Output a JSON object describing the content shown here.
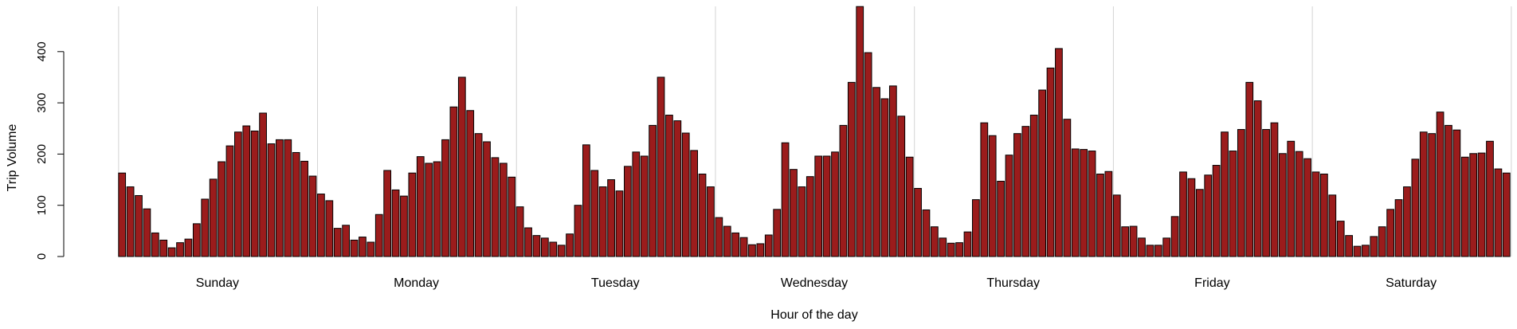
{
  "chart_data": {
    "type": "bar",
    "title": "",
    "xlabel": "Hour of the day",
    "ylabel": "Trip Volume",
    "ylim": [
      0,
      490
    ],
    "yticks": [
      0,
      100,
      200,
      300,
      400
    ],
    "grid": "vertical separators between days",
    "bar_color": "#9B1C1C",
    "bar_edge_color": "#000000",
    "separator_color": "#D3D3D3",
    "days": [
      {
        "name": "Sunday",
        "values": [
          163,
          136,
          119,
          93,
          46,
          32,
          17,
          27,
          34,
          64,
          112,
          151,
          185,
          216,
          243,
          255,
          245,
          280,
          220,
          228,
          228,
          203,
          186,
          157
        ]
      },
      {
        "name": "Monday",
        "values": [
          122,
          109,
          55,
          61,
          32,
          38,
          28,
          82,
          168,
          130,
          118,
          163,
          195,
          182,
          185,
          228,
          292,
          350,
          285,
          240,
          224,
          193,
          182,
          155
        ]
      },
      {
        "name": "Tuesday",
        "values": [
          97,
          56,
          41,
          36,
          28,
          22,
          44,
          100,
          218,
          168,
          136,
          150,
          128,
          176,
          204,
          196,
          256,
          350,
          276,
          265,
          241,
          207,
          161,
          136
        ]
      },
      {
        "name": "Wednesday",
        "values": [
          76,
          59,
          46,
          37,
          23,
          25,
          42,
          92,
          222,
          170,
          136,
          156,
          196,
          196,
          204,
          256,
          340,
          488,
          398,
          330,
          308,
          333,
          274,
          194
        ]
      },
      {
        "name": "Thursday",
        "values": [
          133,
          91,
          58,
          36,
          26,
          27,
          48,
          111,
          261,
          236,
          147,
          198,
          240,
          254,
          276,
          325,
          368,
          406,
          268,
          210,
          209,
          206,
          161,
          166
        ]
      },
      {
        "name": "Friday",
        "values": [
          120,
          58,
          59,
          36,
          22,
          22,
          36,
          78,
          165,
          152,
          131,
          159,
          178,
          243,
          206,
          248,
          340,
          304,
          248,
          261,
          201,
          225,
          205,
          191
        ]
      },
      {
        "name": "Saturday",
        "values": [
          165,
          161,
          120,
          69,
          41,
          20,
          22,
          39,
          58,
          92,
          111,
          136,
          190,
          243,
          240,
          282,
          256,
          247,
          194,
          201,
          202,
          225,
          171,
          163
        ]
      }
    ]
  }
}
